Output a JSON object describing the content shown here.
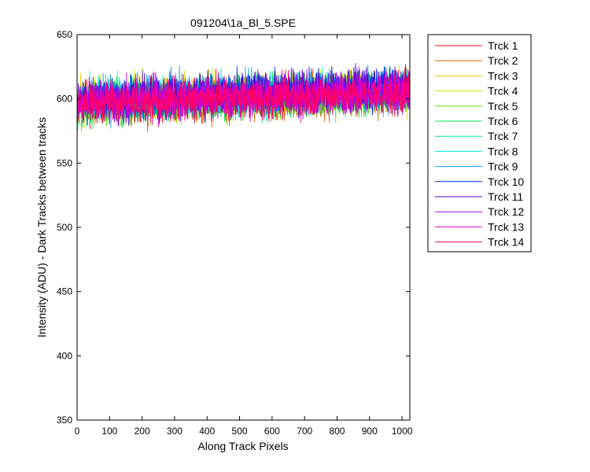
{
  "chart_data": {
    "type": "line",
    "title": "091204\\1a_Bl_5.SPE",
    "xlabel": "Along Track Pixels",
    "ylabel": "Intensity (ADU) - Dark Tracks between tracks",
    "xlim": [
      0,
      1024
    ],
    "ylim": [
      350,
      650
    ],
    "xticks": [
      0,
      100,
      200,
      300,
      400,
      500,
      600,
      700,
      800,
      900,
      1000
    ],
    "yticks": [
      350,
      400,
      450,
      500,
      550,
      600,
      650
    ],
    "grid": false,
    "legend_position": "outside-top-right",
    "x_points": 1024,
    "noise_amplitude": 8,
    "series": [
      {
        "name": "Trck 1",
        "color": "#ff0000",
        "start": 597,
        "end": 606
      },
      {
        "name": "Trck 2",
        "color": "#e06400",
        "start": 595,
        "end": 603
      },
      {
        "name": "Trck 3",
        "color": "#e6d200",
        "start": 598,
        "end": 607
      },
      {
        "name": "Trck 4",
        "color": "#c8e600",
        "start": 599,
        "end": 608
      },
      {
        "name": "Trck 5",
        "color": "#64e600",
        "start": 596,
        "end": 604
      },
      {
        "name": "Trck 6",
        "color": "#00e650",
        "start": 597,
        "end": 605
      },
      {
        "name": "Trck 7",
        "color": "#00e6a0",
        "start": 598,
        "end": 606
      },
      {
        "name": "Trck 8",
        "color": "#00e6e6",
        "start": 599,
        "end": 607
      },
      {
        "name": "Trck 9",
        "color": "#0096e6",
        "start": 600,
        "end": 608
      },
      {
        "name": "Trck 10",
        "color": "#0028e6",
        "start": 600,
        "end": 609
      },
      {
        "name": "Trck 11",
        "color": "#5000e6",
        "start": 599,
        "end": 608
      },
      {
        "name": "Trck 12",
        "color": "#a000e6",
        "start": 598,
        "end": 607
      },
      {
        "name": "Trck 13",
        "color": "#e600c8",
        "start": 597,
        "end": 606
      },
      {
        "name": "Trck 14",
        "color": "#ff0064",
        "start": 596,
        "end": 605
      }
    ]
  }
}
